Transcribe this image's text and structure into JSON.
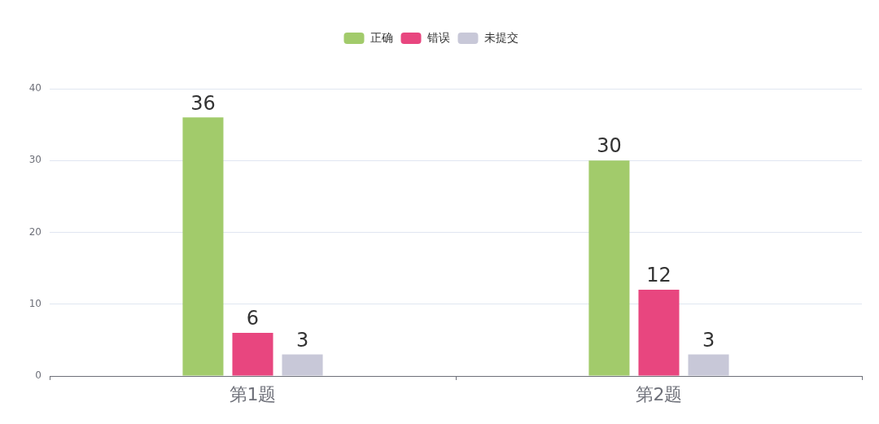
{
  "chart_data": {
    "type": "bar",
    "categories": [
      "第1题",
      "第2题"
    ],
    "series": [
      {
        "name": "正确",
        "color": "#a2cb6b",
        "values": [
          36,
          30
        ]
      },
      {
        "name": "错误",
        "color": "#e8467f",
        "values": [
          6,
          12
        ]
      },
      {
        "name": "未提交",
        "color": "#c8c8d8",
        "values": [
          3,
          3
        ]
      }
    ],
    "ylim": [
      0,
      40
    ],
    "yticks": [
      0,
      10,
      20,
      30,
      40
    ],
    "grid": "y",
    "legend": "top",
    "data_labels": true
  }
}
